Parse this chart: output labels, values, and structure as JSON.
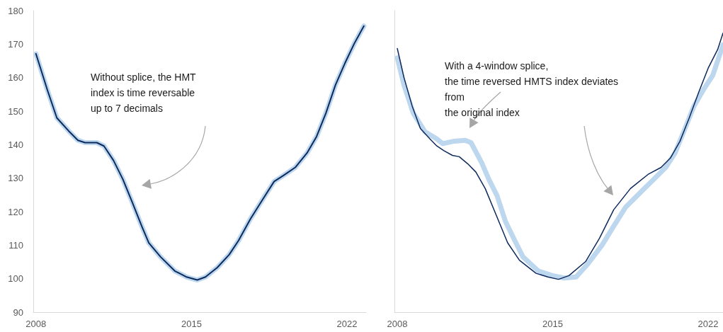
{
  "chart_data": [
    {
      "type": "line",
      "xlim": [
        2007.88,
        2022.86
      ],
      "xticks": [
        2008,
        2015,
        2022
      ],
      "ylim": [
        90,
        180
      ],
      "yticks": [
        90,
        100,
        110,
        120,
        130,
        140,
        150,
        160,
        170,
        180
      ],
      "grid": false,
      "annotations": [
        "Without splice, the HMT\nindex is time reversable\nup to 7 decimals"
      ],
      "series": [
        {
          "color": "#bdd7ee",
          "x": [
            2008.0,
            2008.51,
            2008.94,
            2009.47,
            2009.89,
            2010.21,
            2010.74,
            2011.06,
            2011.49,
            2011.91,
            2012.34,
            2012.76,
            2013.08,
            2013.61,
            2014.25,
            2014.78,
            2015.26,
            2015.63,
            2016.16,
            2016.7,
            2017.12,
            2017.65,
            2018.18,
            2018.72,
            2019.14,
            2019.67,
            2020.2,
            2020.63,
            2021.05,
            2021.48,
            2021.9,
            2022.33,
            2022.76
          ],
          "values": [
            167.1,
            156.4,
            148.0,
            144.1,
            141.3,
            140.6,
            140.6,
            139.6,
            135.3,
            129.7,
            122.7,
            115.7,
            110.7,
            106.5,
            102.3,
            100.5,
            99.6,
            100.5,
            103.3,
            107.2,
            111.4,
            117.8,
            123.4,
            129.0,
            130.8,
            133.2,
            137.5,
            142.4,
            149.4,
            157.8,
            164.2,
            170.2,
            175.4
          ]
        },
        {
          "color": "#0d2a5e",
          "x": [
            2008.0,
            2008.51,
            2008.94,
            2009.47,
            2009.89,
            2010.21,
            2010.74,
            2011.06,
            2011.49,
            2011.91,
            2012.34,
            2012.76,
            2013.08,
            2013.61,
            2014.25,
            2014.78,
            2015.26,
            2015.63,
            2016.16,
            2016.7,
            2017.12,
            2017.65,
            2018.18,
            2018.72,
            2019.14,
            2019.67,
            2020.2,
            2020.63,
            2021.05,
            2021.48,
            2021.9,
            2022.33,
            2022.76
          ],
          "values": [
            167.1,
            156.4,
            148.0,
            144.1,
            141.3,
            140.6,
            140.6,
            139.6,
            135.3,
            129.7,
            122.7,
            115.7,
            110.7,
            106.5,
            102.3,
            100.5,
            99.6,
            100.5,
            103.3,
            107.2,
            111.4,
            117.8,
            123.4,
            129.0,
            130.8,
            133.2,
            137.5,
            142.4,
            149.4,
            157.8,
            164.2,
            170.2,
            175.4
          ]
        }
      ]
    },
    {
      "type": "line",
      "xlim": [
        2007.87,
        2022.67
      ],
      "xticks": [
        2008,
        2015,
        2022
      ],
      "ylim": [
        90,
        180
      ],
      "yticks": [
        90,
        100,
        110,
        120,
        130,
        140,
        150,
        160,
        170,
        180
      ],
      "grid": false,
      "tick_labels": "x",
      "annotations": [
        "With a 4-window splice,\nthe time reversed HMTS index deviates\nfrom\nthe original index"
      ],
      "series": [
        {
          "color": "#bdd7ee",
          "x": [
            2008.0,
            2008.3,
            2008.72,
            2009.25,
            2009.78,
            2010.05,
            2010.53,
            2011.06,
            2011.32,
            2011.8,
            2012.12,
            2012.49,
            2012.87,
            2013.29,
            2013.66,
            2014.35,
            2014.99,
            2015.52,
            2016.05,
            2016.58,
            2017.22,
            2017.75,
            2018.28,
            2019.13,
            2019.56,
            2020.09,
            2020.51,
            2020.94,
            2021.36,
            2021.79,
            2022.21,
            2022.53,
            2022.67
          ],
          "values": [
            165.9,
            157.8,
            149.4,
            143.8,
            141.7,
            140.3,
            141.0,
            141.3,
            140.6,
            134.6,
            129.7,
            124.8,
            117.1,
            111.4,
            106.5,
            102.3,
            100.9,
            100.2,
            100.5,
            104.4,
            110.0,
            115.7,
            121.3,
            126.9,
            129.7,
            133.2,
            137.5,
            144.5,
            151.5,
            156.4,
            160.7,
            167.0,
            169.8
          ]
        },
        {
          "color": "#0d2a5e",
          "x": [
            2008.0,
            2008.3,
            2008.67,
            2009.04,
            2009.47,
            2009.78,
            2010.1,
            2010.48,
            2010.79,
            2011.17,
            2011.54,
            2011.96,
            2012.44,
            2012.97,
            2013.5,
            2014.25,
            2014.78,
            2015.26,
            2015.73,
            2016.48,
            2017.11,
            2017.75,
            2018.5,
            2019.29,
            2019.88,
            2020.3,
            2020.73,
            2021.15,
            2021.58,
            2022.0,
            2022.43,
            2022.67
          ],
          "values": [
            168.7,
            160.0,
            151.5,
            144.8,
            141.7,
            139.6,
            138.2,
            136.8,
            136.4,
            134.3,
            131.8,
            126.9,
            119.2,
            110.7,
            105.5,
            101.6,
            100.5,
            99.8,
            100.9,
            105.1,
            112.1,
            120.6,
            126.9,
            131.1,
            133.2,
            136.0,
            141.0,
            148.0,
            155.7,
            162.8,
            168.4,
            173.3
          ]
        }
      ]
    }
  ]
}
